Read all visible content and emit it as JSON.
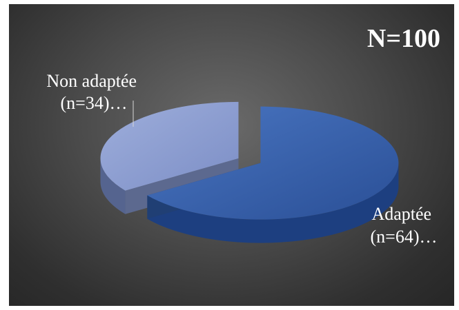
{
  "chart_data": {
    "type": "pie",
    "title": "N=100",
    "slices": [
      {
        "label": "Adaptée (n=64)…",
        "label_lines": [
          "Adaptée",
          "(n=64)…"
        ],
        "value": 64,
        "color": "#2e5aa6"
      },
      {
        "label": "Non adaptée (n=34)…",
        "label_lines": [
          "Non adaptée",
          "(n=34)…"
        ],
        "value": 34,
        "color": "#8496cc"
      }
    ],
    "style": "3d-exploded",
    "legend": "none"
  }
}
